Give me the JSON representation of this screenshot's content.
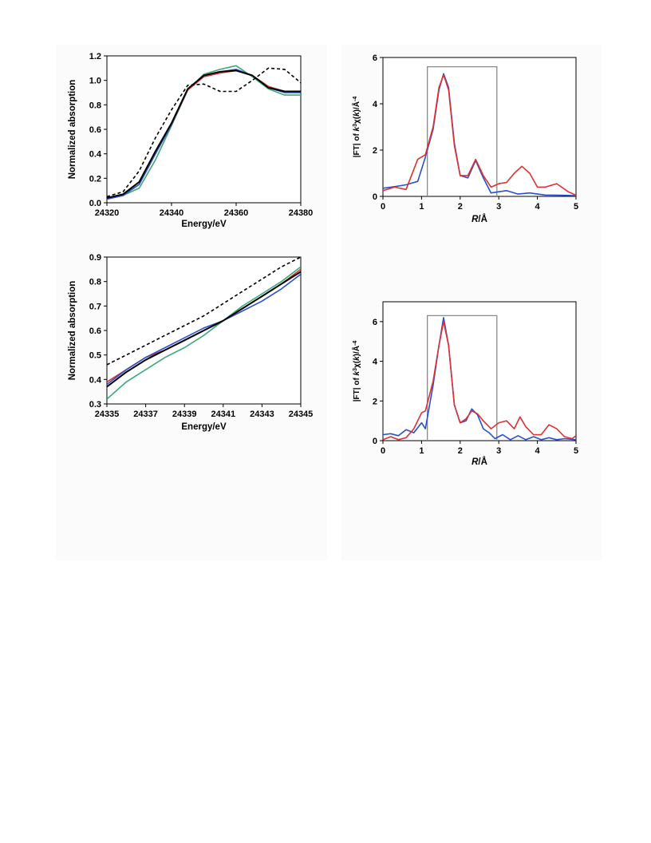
{
  "chart_data": [
    {
      "id": "xanes-full",
      "type": "line",
      "title": "",
      "xlabel": "Energy/eV",
      "ylabel": "Normalized absorption",
      "xlim": [
        24320,
        24380
      ],
      "ylim": [
        0,
        1.2
      ],
      "xticks": [
        24320,
        24340,
        24360,
        24380
      ],
      "xtick_labels": [
        "24320",
        "24340",
        "24360",
        "24380"
      ],
      "yticks": [
        0,
        0.2,
        0.4,
        0.6,
        0.8,
        1.0,
        1.2
      ],
      "ytick_labels": [
        "0.0",
        "0.2",
        "0.4",
        "0.6",
        "0.8",
        "1.0",
        "1.2"
      ],
      "grid": false,
      "legend": "none",
      "series": [
        {
          "color": "#3aaa7a",
          "dash": false,
          "x": [
            24320,
            24325,
            24330,
            24335,
            24340,
            24345,
            24350,
            24355,
            24360,
            24365,
            24370,
            24375,
            24380
          ],
          "y": [
            0.03,
            0.06,
            0.12,
            0.35,
            0.63,
            0.92,
            1.05,
            1.09,
            1.12,
            1.03,
            0.93,
            0.88,
            0.88
          ]
        },
        {
          "color": "#e03030",
          "dash": false,
          "x": [
            24320,
            24325,
            24330,
            24335,
            24340,
            24345,
            24350,
            24355,
            24360,
            24365,
            24370,
            24375,
            24380
          ],
          "y": [
            0.03,
            0.06,
            0.15,
            0.4,
            0.64,
            0.92,
            1.03,
            1.06,
            1.08,
            1.04,
            0.95,
            0.91,
            0.91
          ]
        },
        {
          "color": "#2850d0",
          "dash": false,
          "x": [
            24320,
            24325,
            24330,
            24335,
            24340,
            24345,
            24350,
            24355,
            24360,
            24365,
            24370,
            24375,
            24380
          ],
          "y": [
            0.03,
            0.06,
            0.15,
            0.4,
            0.64,
            0.93,
            1.04,
            1.07,
            1.09,
            1.04,
            0.94,
            0.9,
            0.9
          ]
        },
        {
          "color": "#000000",
          "dash": false,
          "x": [
            24320,
            24325,
            24330,
            24335,
            24340,
            24345,
            24350,
            24355,
            24360,
            24365,
            24370,
            24375,
            24380
          ],
          "y": [
            0.04,
            0.07,
            0.17,
            0.42,
            0.65,
            0.93,
            1.04,
            1.07,
            1.08,
            1.04,
            0.94,
            0.91,
            0.91
          ]
        },
        {
          "color": "#000000",
          "dash": true,
          "x": [
            24320,
            24325,
            24330,
            24335,
            24340,
            24345,
            24350,
            24355,
            24360,
            24365,
            24370,
            24375,
            24380
          ],
          "y": [
            0.05,
            0.09,
            0.26,
            0.53,
            0.76,
            0.96,
            0.97,
            0.91,
            0.91,
            1.0,
            1.1,
            1.09,
            0.98
          ]
        }
      ]
    },
    {
      "id": "ft-top",
      "type": "line",
      "title": "",
      "xlabel": "R/Å",
      "ylabel": "|FT| of k³χ(k)/Å⁻⁴",
      "xlim": [
        0,
        5
      ],
      "ylim": [
        0,
        6
      ],
      "xticks": [
        0,
        1,
        2,
        3,
        4,
        5
      ],
      "xtick_labels": [
        "0",
        "1",
        "2",
        "3",
        "4",
        "5"
      ],
      "yticks": [
        0,
        2,
        4,
        6
      ],
      "ytick_labels": [
        "0",
        "2",
        "4",
        "6"
      ],
      "grid": false,
      "legend": "none",
      "window": [
        1.15,
        2.95,
        5.6
      ],
      "series": [
        {
          "color": "#2850d0",
          "dash": false,
          "x": [
            0,
            0.3,
            0.6,
            0.9,
            1.1,
            1.3,
            1.45,
            1.57,
            1.7,
            1.85,
            2.0,
            2.2,
            2.4,
            2.6,
            2.8,
            3.0,
            3.2,
            3.5,
            3.8,
            4.2,
            4.6,
            5.0
          ],
          "y": [
            0.35,
            0.42,
            0.5,
            0.65,
            1.7,
            2.9,
            4.6,
            5.3,
            4.7,
            2.3,
            0.9,
            0.8,
            1.55,
            0.8,
            0.15,
            0.2,
            0.25,
            0.1,
            0.15,
            0.06,
            0.05,
            0.03
          ]
        },
        {
          "color": "#e03030",
          "dash": false,
          "x": [
            0,
            0.3,
            0.6,
            0.9,
            1.1,
            1.3,
            1.45,
            1.57,
            1.7,
            1.85,
            2.0,
            2.2,
            2.4,
            2.6,
            2.8,
            3.0,
            3.2,
            3.4,
            3.6,
            3.8,
            4.0,
            4.2,
            4.5,
            4.8,
            5.0
          ],
          "y": [
            0.25,
            0.4,
            0.3,
            1.6,
            1.8,
            3.0,
            4.7,
            5.25,
            4.6,
            2.2,
            0.9,
            0.9,
            1.6,
            0.9,
            0.4,
            0.55,
            0.6,
            1.0,
            1.3,
            1.0,
            0.4,
            0.4,
            0.55,
            0.2,
            0.05
          ]
        }
      ]
    },
    {
      "id": "xanes-zoom",
      "type": "line",
      "title": "",
      "xlabel": "Energy/eV",
      "ylabel": "Normalized absorption",
      "xlim": [
        24335,
        24345
      ],
      "ylim": [
        0.3,
        0.9
      ],
      "xticks": [
        24335,
        24337,
        24339,
        24341,
        24343,
        24345
      ],
      "xtick_labels": [
        "24335",
        "24337",
        "24339",
        "24341",
        "24343",
        "24345"
      ],
      "yticks": [
        0.3,
        0.4,
        0.5,
        0.6,
        0.7,
        0.8,
        0.9
      ],
      "ytick_labels": [
        "0.3",
        "0.4",
        "0.5",
        "0.6",
        "0.7",
        "0.8",
        "0.9"
      ],
      "grid": false,
      "legend": "none",
      "series": [
        {
          "color": "#3aaa7a",
          "dash": false,
          "x": [
            24335,
            24336,
            24337,
            24338,
            24339,
            24340,
            24341,
            24342,
            24343,
            24344,
            24345
          ],
          "y": [
            0.32,
            0.39,
            0.44,
            0.49,
            0.53,
            0.58,
            0.64,
            0.7,
            0.75,
            0.8,
            0.86
          ]
        },
        {
          "color": "#e03030",
          "dash": false,
          "x": [
            24335,
            24336,
            24337,
            24338,
            24339,
            24340,
            24341,
            24342,
            24343,
            24344,
            24345
          ],
          "y": [
            0.39,
            0.44,
            0.49,
            0.52,
            0.56,
            0.6,
            0.64,
            0.69,
            0.74,
            0.79,
            0.85
          ]
        },
        {
          "color": "#2850d0",
          "dash": false,
          "x": [
            24335,
            24336,
            24337,
            24338,
            24339,
            24340,
            24341,
            24342,
            24343,
            24344,
            24345
          ],
          "y": [
            0.38,
            0.44,
            0.49,
            0.53,
            0.57,
            0.61,
            0.64,
            0.68,
            0.72,
            0.77,
            0.83
          ]
        },
        {
          "color": "#000000",
          "dash": false,
          "x": [
            24335,
            24336,
            24337,
            24338,
            24339,
            24340,
            24341,
            24342,
            24343,
            24344,
            24345
          ],
          "y": [
            0.37,
            0.43,
            0.48,
            0.52,
            0.56,
            0.6,
            0.64,
            0.69,
            0.74,
            0.79,
            0.84
          ]
        },
        {
          "color": "#000000",
          "dash": true,
          "x": [
            24335,
            24336,
            24337,
            24338,
            24339,
            24340,
            24341,
            24342,
            24343,
            24344,
            24345
          ],
          "y": [
            0.46,
            0.5,
            0.54,
            0.58,
            0.62,
            0.66,
            0.71,
            0.76,
            0.81,
            0.86,
            0.9
          ]
        }
      ]
    },
    {
      "id": "ft-bottom",
      "type": "line",
      "title": "",
      "xlabel": "R/Å",
      "ylabel": "|FT| of k³χ(k)/Å⁻⁴",
      "xlim": [
        0,
        5
      ],
      "ylim": [
        0,
        7
      ],
      "xticks": [
        0,
        1,
        2,
        3,
        4,
        5
      ],
      "xtick_labels": [
        "0",
        "1",
        "2",
        "3",
        "4",
        "5"
      ],
      "yticks": [
        0,
        2,
        4,
        6
      ],
      "ytick_labels": [
        "0",
        "2",
        "4",
        "6"
      ],
      "grid": false,
      "legend": "none",
      "window": [
        1.15,
        2.95,
        6.3
      ],
      "series": [
        {
          "color": "#2850d0",
          "dash": false,
          "x": [
            0,
            0.2,
            0.4,
            0.6,
            0.8,
            1.0,
            1.1,
            1.3,
            1.45,
            1.57,
            1.7,
            1.85,
            2.0,
            2.15,
            2.3,
            2.45,
            2.6,
            2.75,
            2.9,
            3.1,
            3.3,
            3.5,
            3.7,
            3.9,
            4.1,
            4.3,
            4.5,
            4.7,
            5.0
          ],
          "y": [
            0.3,
            0.35,
            0.25,
            0.55,
            0.4,
            0.9,
            0.6,
            2.8,
            4.8,
            6.2,
            4.8,
            1.8,
            0.9,
            1.0,
            1.6,
            1.3,
            0.6,
            0.4,
            0.1,
            0.3,
            0.05,
            0.25,
            0.05,
            0.2,
            0.05,
            0.15,
            0.05,
            0.1,
            0.05
          ]
        },
        {
          "color": "#e03030",
          "dash": false,
          "x": [
            0,
            0.2,
            0.4,
            0.6,
            0.8,
            1.0,
            1.1,
            1.3,
            1.45,
            1.57,
            1.7,
            1.85,
            2.0,
            2.15,
            2.3,
            2.45,
            2.6,
            2.8,
            3.0,
            3.2,
            3.4,
            3.55,
            3.7,
            3.9,
            4.1,
            4.3,
            4.5,
            4.7,
            4.9,
            5.0
          ],
          "y": [
            0.05,
            0.2,
            0.05,
            0.15,
            0.6,
            1.4,
            1.5,
            3.0,
            4.8,
            6.0,
            4.8,
            1.8,
            0.9,
            1.1,
            1.5,
            1.35,
            1.0,
            0.6,
            0.9,
            1.0,
            0.6,
            1.2,
            0.7,
            0.3,
            0.3,
            0.8,
            0.6,
            0.2,
            0.1,
            0.25
          ]
        }
      ]
    }
  ]
}
